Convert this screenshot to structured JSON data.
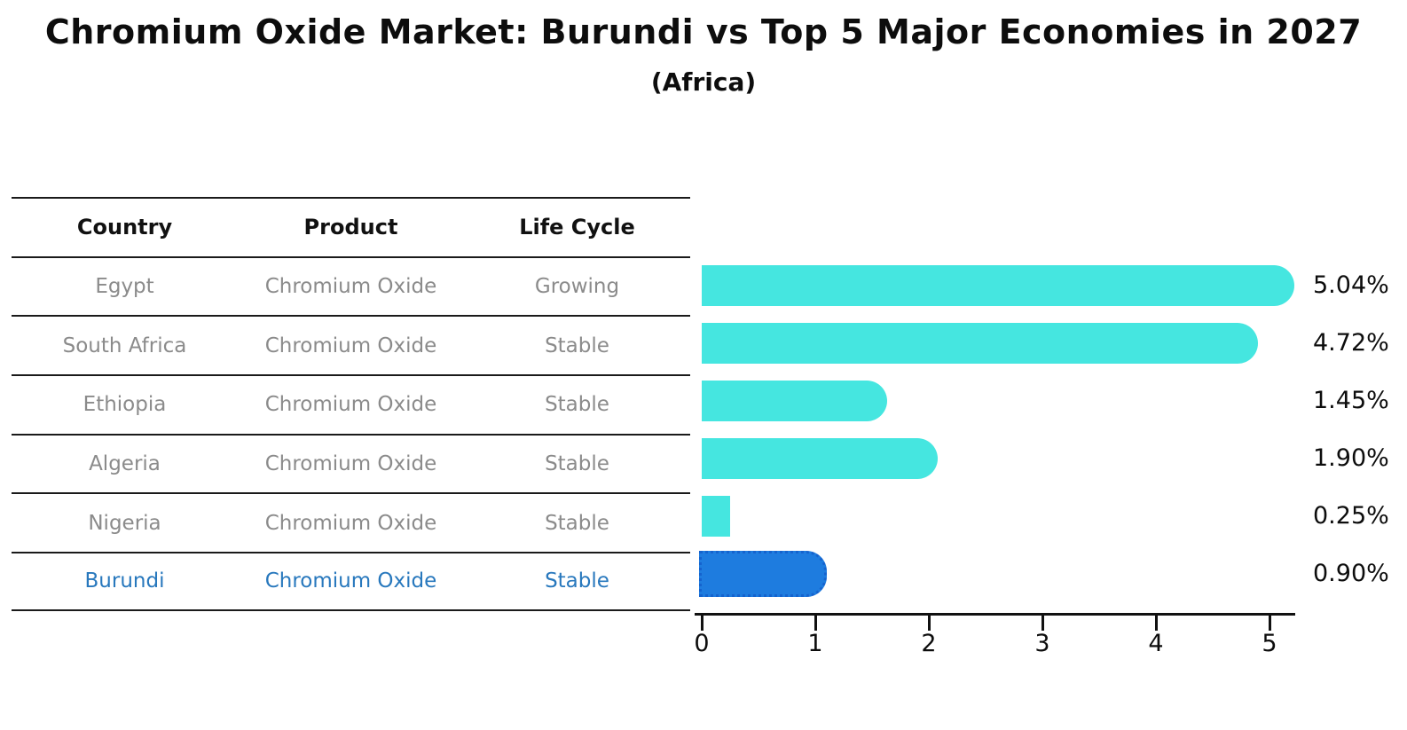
{
  "header": {
    "title": "Chromium Oxide Market: Burundi vs Top 5 Major Economies in 2027",
    "subtitle": "(Africa)"
  },
  "table": {
    "columns": [
      "Country",
      "Product",
      "Life Cycle"
    ],
    "rows": [
      {
        "country": "Egypt",
        "product": "Chromium Oxide",
        "life_cycle": "Growing",
        "highlight": false
      },
      {
        "country": "South Africa",
        "product": "Chromium Oxide",
        "life_cycle": "Stable",
        "highlight": false
      },
      {
        "country": "Ethiopia",
        "product": "Chromium Oxide",
        "life_cycle": "Stable",
        "highlight": false
      },
      {
        "country": "Algeria",
        "product": "Chromium Oxide",
        "life_cycle": "Stable",
        "highlight": false
      },
      {
        "country": "Nigeria",
        "product": "Chromium Oxide",
        "life_cycle": "Stable",
        "highlight": false
      },
      {
        "country": "Burundi",
        "product": "Chromium Oxide",
        "life_cycle": "Stable",
        "highlight": true
      }
    ]
  },
  "chart_data": {
    "type": "bar",
    "orientation": "horizontal",
    "title": "Chromium Oxide Market: Burundi vs Top 5 Major Economies in 2027 (Africa)",
    "categories": [
      "Egypt",
      "South Africa",
      "Ethiopia",
      "Algeria",
      "Nigeria",
      "Burundi"
    ],
    "values": [
      5.04,
      4.72,
      1.45,
      1.9,
      0.25,
      0.9
    ],
    "value_labels": [
      "5.04%",
      "4.72%",
      "1.45%",
      "1.90%",
      "0.25%",
      "0.90%"
    ],
    "x_ticks": [
      0,
      1,
      2,
      3,
      4,
      5
    ],
    "xlim": [
      0,
      5.3
    ],
    "xlabel": "",
    "ylabel": "",
    "grid": false,
    "legend": false,
    "highlight_index": 5
  },
  "colors": {
    "bar": "#45E6E0",
    "highlight_bar": "#1E7CDF",
    "highlight_border": "#1563CE",
    "highlight_text": "#2878BD",
    "row_text": "#8B8B8B",
    "header_text": "#111111",
    "line": "#1A1A1A",
    "value_label_text": "#0D0D0D"
  }
}
